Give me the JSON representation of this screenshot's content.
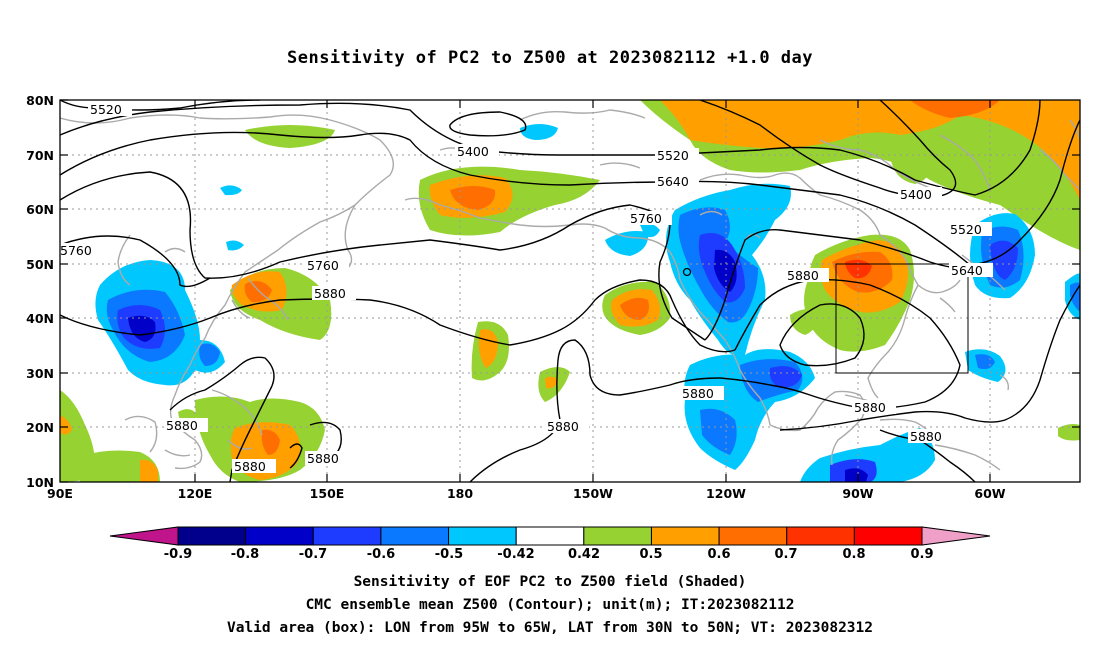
{
  "title": "Sensitivity of PC2 to Z500 at 2023082112 +1.0 day",
  "lat_labels": [
    "80N",
    "70N",
    "60N",
    "50N",
    "40N",
    "30N",
    "20N",
    "10N"
  ],
  "lon_labels": [
    "90E",
    "120E",
    "150E",
    "180",
    "150W",
    "120W",
    "90W",
    "60W"
  ],
  "contour_labels": [
    "5520",
    "5400",
    "5520",
    "5640",
    "5400",
    "5520",
    "5760",
    "5760",
    "5760",
    "5640",
    "5880",
    "5880",
    "5880",
    "5880",
    "5880",
    "5880",
    "5880",
    "5880"
  ],
  "colorbar": {
    "labels": [
      "-0.9",
      "-0.8",
      "-0.7",
      "-0.6",
      "-0.5",
      "-0.42",
      "0.42",
      "0.5",
      "0.6",
      "0.7",
      "0.8",
      "0.9"
    ],
    "colors": {
      "under": "#c0148c",
      "over": "#f0a0c8",
      "bins": [
        "#00008c",
        "#0000c8",
        "#1e3cff",
        "#0a78ff",
        "#00c8ff",
        "#ffffff",
        "#96d232",
        "#ffa000",
        "#ff6e00",
        "#ff3200",
        "#ff0000"
      ]
    }
  },
  "caption": {
    "line1": "Sensitivity of EOF PC2 to Z500 field (Shaded)",
    "line2": "CMC ensemble mean Z500 (Contour); unit(m); IT:2023082112",
    "line3": "Valid area (box): LON from 95W to 65W, LAT from 30N to 50N; VT: 2023082312"
  }
}
